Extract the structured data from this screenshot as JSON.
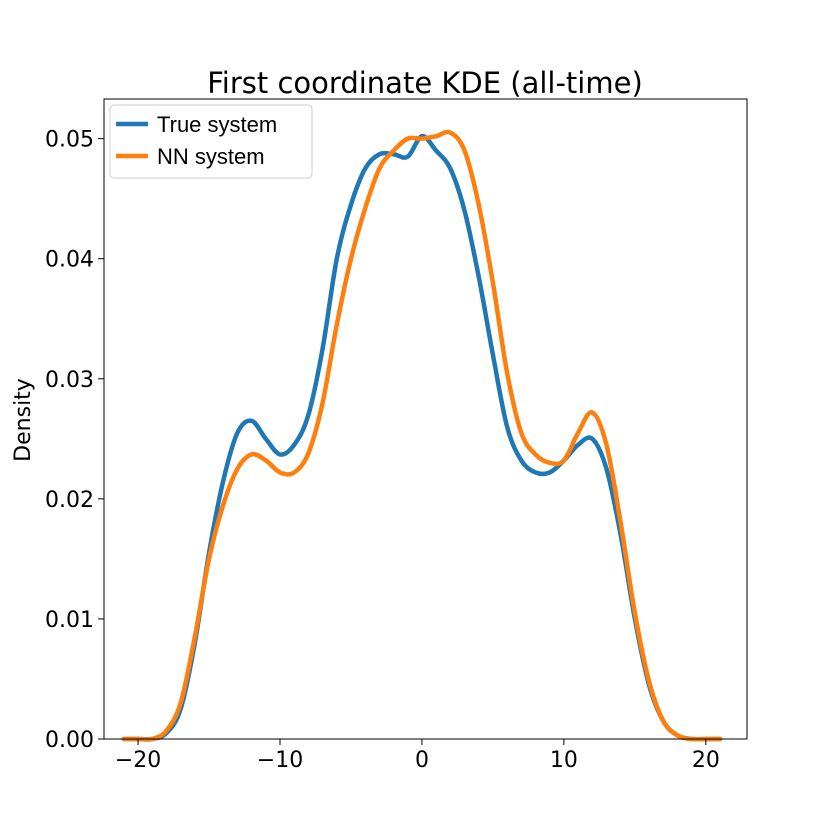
{
  "chart_data": {
    "type": "line",
    "title": "First coordinate KDE (all-time)",
    "xlabel": "",
    "ylabel": "Density",
    "xlim": [
      -22.4,
      22.9
    ],
    "ylim": [
      0,
      0.0533
    ],
    "xticks": [
      -20,
      -10,
      0,
      10,
      20
    ],
    "xtick_labels": [
      "−20",
      "−10",
      "0",
      "10",
      "20"
    ],
    "yticks": [
      0,
      0.01,
      0.02,
      0.03,
      0.04,
      0.05
    ],
    "ytick_labels": [
      "0.00",
      "0.01",
      "0.02",
      "0.03",
      "0.04",
      "0.05"
    ],
    "grid": false,
    "legend_position": "top-left",
    "series": [
      {
        "name": "True system",
        "color": "#1f77b4",
        "x": [
          -21,
          -20,
          -19,
          -18,
          -17,
          -16,
          -15,
          -14,
          -13,
          -12,
          -11,
          -10,
          -9,
          -8,
          -7,
          -6,
          -5,
          -4,
          -3,
          -2,
          -1,
          0,
          1,
          2,
          3,
          4,
          5,
          6,
          7,
          8,
          9,
          10,
          11,
          12,
          13,
          14,
          15,
          16,
          17,
          18,
          19,
          20,
          21
        ],
        "y": [
          0,
          0,
          0,
          0.0005,
          0.0025,
          0.008,
          0.0155,
          0.0215,
          0.0255,
          0.0265,
          0.025,
          0.0237,
          0.0245,
          0.027,
          0.0325,
          0.04,
          0.0445,
          0.0475,
          0.0487,
          0.0487,
          0.0485,
          0.0502,
          0.049,
          0.0475,
          0.044,
          0.0385,
          0.032,
          0.026,
          0.0232,
          0.0222,
          0.0222,
          0.0232,
          0.0245,
          0.025,
          0.0225,
          0.017,
          0.01,
          0.0045,
          0.0015,
          0.0003,
          0,
          0,
          0
        ]
      },
      {
        "name": "NN system",
        "color": "#ff7f0e",
        "x": [
          -21,
          -20,
          -19,
          -18,
          -17,
          -16,
          -15,
          -14,
          -13,
          -12,
          -11,
          -10,
          -9,
          -8,
          -7,
          -6,
          -5,
          -4,
          -3,
          -2,
          -1,
          0,
          1,
          2,
          3,
          4,
          5,
          6,
          7,
          8,
          9,
          10,
          11,
          12,
          13,
          14,
          15,
          16,
          17,
          18,
          19,
          20,
          21
        ],
        "y": [
          0,
          0,
          0,
          0.0007,
          0.003,
          0.0085,
          0.015,
          0.0195,
          0.0225,
          0.0237,
          0.0232,
          0.0222,
          0.0222,
          0.0238,
          0.028,
          0.0345,
          0.04,
          0.0442,
          0.0475,
          0.049,
          0.05,
          0.05,
          0.0502,
          0.0505,
          0.049,
          0.0445,
          0.038,
          0.0305,
          0.0255,
          0.0237,
          0.023,
          0.0232,
          0.0255,
          0.0272,
          0.0245,
          0.018,
          0.0105,
          0.0048,
          0.0015,
          0.0003,
          0,
          0,
          0
        ]
      }
    ]
  }
}
